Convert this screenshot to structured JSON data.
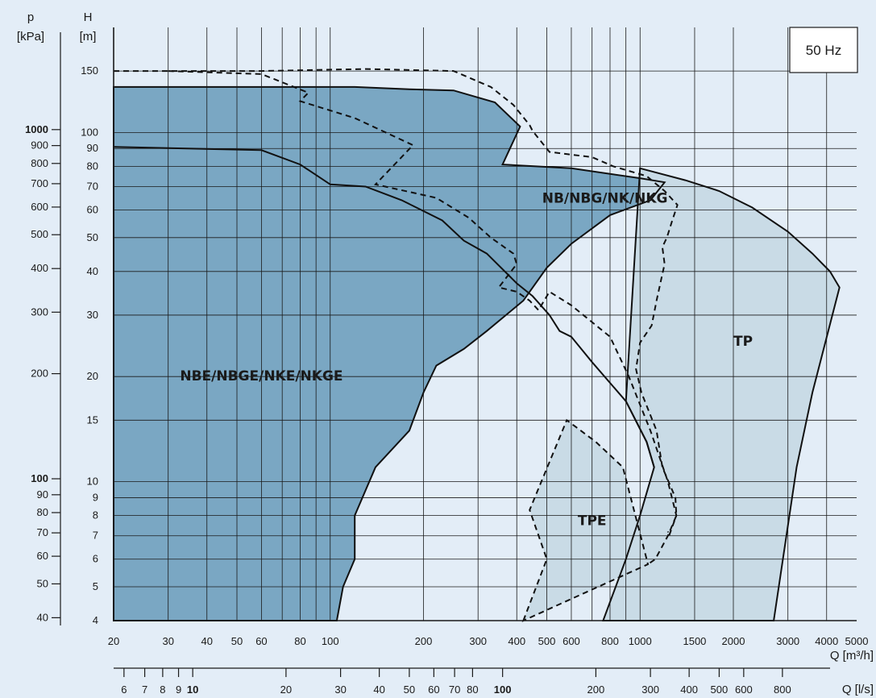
{
  "chart_data": {
    "type": "area",
    "title": "",
    "frequency_label": "50 Hz",
    "axes": {
      "x": {
        "label": "Q [m³/h]",
        "scale": "log",
        "range": [
          20,
          5000
        ],
        "ticks": [
          20,
          30,
          40,
          50,
          60,
          80,
          100,
          200,
          300,
          400,
          500,
          600,
          800,
          1000,
          1500,
          2000,
          3000,
          4000,
          5000
        ],
        "minor_gridlines": [
          70,
          90,
          700,
          900
        ]
      },
      "x2": {
        "label": "Q [l/s]",
        "scale": "log",
        "bold_ticks": [
          10,
          100
        ],
        "ticks": [
          6,
          7,
          8,
          9,
          10,
          20,
          30,
          40,
          50,
          60,
          70,
          80,
          100,
          200,
          300,
          400,
          500,
          600,
          800
        ]
      },
      "y": {
        "label_top": "H",
        "label_bottom": "[m]",
        "scale": "log",
        "range": [
          4,
          200
        ],
        "ticks": [
          4,
          5,
          6,
          7,
          8,
          9,
          10,
          15,
          20,
          30,
          40,
          50,
          60,
          70,
          80,
          90,
          100,
          150
        ]
      },
      "y2": {
        "label_top": "p",
        "label_bottom": "[kPa]",
        "scale": "log",
        "bold_ticks": [
          100,
          1000
        ],
        "ticks": [
          40,
          50,
          60,
          70,
          80,
          90,
          100,
          200,
          300,
          400,
          500,
          600,
          700,
          800,
          900,
          1000
        ]
      }
    },
    "grid": true,
    "series": [
      {
        "name": "NBE/NBGE/NKE/NKGE",
        "label_at": [
          60,
          19.5
        ],
        "fill": "#7aa7c3",
        "stroke": "solid",
        "closed": true,
        "points": [
          [
            20,
            135
          ],
          [
            120,
            135
          ],
          [
            180,
            133
          ],
          [
            250,
            132
          ],
          [
            340,
            122
          ],
          [
            410,
            104
          ],
          [
            360,
            81
          ],
          [
            600,
            79
          ],
          [
            1000,
            74
          ],
          [
            1200,
            72
          ],
          [
            1080,
            64
          ],
          [
            800,
            58
          ],
          [
            600,
            48
          ],
          [
            500,
            41
          ],
          [
            420,
            33
          ],
          [
            320,
            27
          ],
          [
            270,
            24
          ],
          [
            220,
            21.5
          ],
          [
            200,
            18
          ],
          [
            180,
            14
          ],
          [
            140,
            11
          ],
          [
            120,
            8
          ],
          [
            120,
            6
          ],
          [
            110,
            5
          ],
          [
            105,
            4
          ],
          [
            20,
            4
          ]
        ]
      },
      {
        "name": "NBE/NBGE/NKE/NKGE (outer boundary)",
        "stroke": "dashed",
        "closed": false,
        "points": [
          [
            20,
            150
          ],
          [
            60,
            150
          ],
          [
            130,
            152
          ],
          [
            250,
            150
          ],
          [
            330,
            135
          ],
          [
            390,
            120
          ],
          [
            440,
            105
          ],
          [
            450,
            101
          ],
          [
            510,
            88
          ],
          [
            700,
            85
          ],
          [
            820,
            80
          ],
          [
            1050,
            75
          ],
          [
            1200,
            68
          ],
          [
            1320,
            62
          ],
          [
            1270,
            56
          ],
          [
            1220,
            50
          ],
          [
            1180,
            47
          ],
          [
            1200,
            42
          ],
          [
            1170,
            38
          ],
          [
            1130,
            33
          ],
          [
            1090,
            28
          ],
          [
            1000,
            25
          ],
          [
            970,
            21
          ],
          [
            1010,
            18
          ],
          [
            1130,
            14
          ],
          [
            1180,
            11
          ],
          [
            1300,
            9
          ],
          [
            1310,
            8
          ],
          [
            1230,
            7
          ],
          [
            1120,
            6
          ],
          [
            1060,
            5.8
          ]
        ]
      },
      {
        "name": "NB/NBG/NK/NKG",
        "label_at": [
          770,
          63
        ],
        "fill": "#7aa7c3",
        "stroke": "solid",
        "closed": false,
        "points": [
          [
            20,
            91
          ],
          [
            60,
            89
          ],
          [
            80,
            81
          ],
          [
            100,
            71
          ],
          [
            130,
            70
          ],
          [
            170,
            64
          ],
          [
            230,
            56
          ],
          [
            270,
            49
          ],
          [
            320,
            45
          ],
          [
            400,
            37
          ],
          [
            450,
            34
          ],
          [
            510,
            30
          ],
          [
            550,
            27
          ],
          [
            600,
            26
          ],
          [
            700,
            22
          ],
          [
            900,
            17
          ],
          [
            1050,
            13
          ],
          [
            1110,
            11
          ]
        ]
      },
      {
        "name": "NB/NBG/NK/NKG (dashed boundary)",
        "stroke": "dashed",
        "closed": false,
        "points": [
          [
            30,
            150
          ],
          [
            60,
            147
          ],
          [
            85,
            130
          ],
          [
            80,
            123
          ],
          [
            120,
            110
          ],
          [
            185,
            92
          ],
          [
            140,
            71
          ],
          [
            220,
            65
          ],
          [
            280,
            57
          ],
          [
            330,
            50
          ],
          [
            390,
            45
          ],
          [
            400,
            42
          ],
          [
            350,
            36
          ],
          [
            400,
            35
          ],
          [
            440,
            33
          ],
          [
            470,
            31
          ],
          [
            510,
            35
          ],
          [
            600,
            32
          ],
          [
            800,
            26
          ],
          [
            920,
            20
          ],
          [
            1080,
            14
          ],
          [
            1230,
            10
          ],
          [
            1310,
            8
          ],
          [
            1240,
            7
          ],
          [
            1230,
            7.2
          ]
        ]
      },
      {
        "name": "TP",
        "label_at": [
          2150,
          24.5
        ],
        "fill": "#c9dbe6",
        "stroke": "solid",
        "closed": true,
        "points": [
          [
            1000,
            79
          ],
          [
            1400,
            73
          ],
          [
            1800,
            68
          ],
          [
            2300,
            61
          ],
          [
            3000,
            52
          ],
          [
            3600,
            45
          ],
          [
            4100,
            40
          ],
          [
            4400,
            36
          ],
          [
            3600,
            18
          ],
          [
            3200,
            11
          ],
          [
            2700,
            4
          ],
          [
            760,
            4
          ],
          [
            900,
            6
          ],
          [
            1000,
            8
          ],
          [
            1110,
            11
          ],
          [
            1050,
            13
          ],
          [
            900,
            17
          ]
        ]
      },
      {
        "name": "TPE",
        "label_at": [
          700,
          7.5
        ],
        "fill": "#c9dbe6",
        "stroke": "dashed",
        "closed": true,
        "points": [
          [
            420,
            4
          ],
          [
            500,
            6
          ],
          [
            440,
            8.3
          ],
          [
            580,
            15
          ],
          [
            720,
            13
          ],
          [
            880,
            11
          ],
          [
            1050,
            6
          ],
          [
            1060,
            5.8
          ]
        ]
      }
    ]
  }
}
